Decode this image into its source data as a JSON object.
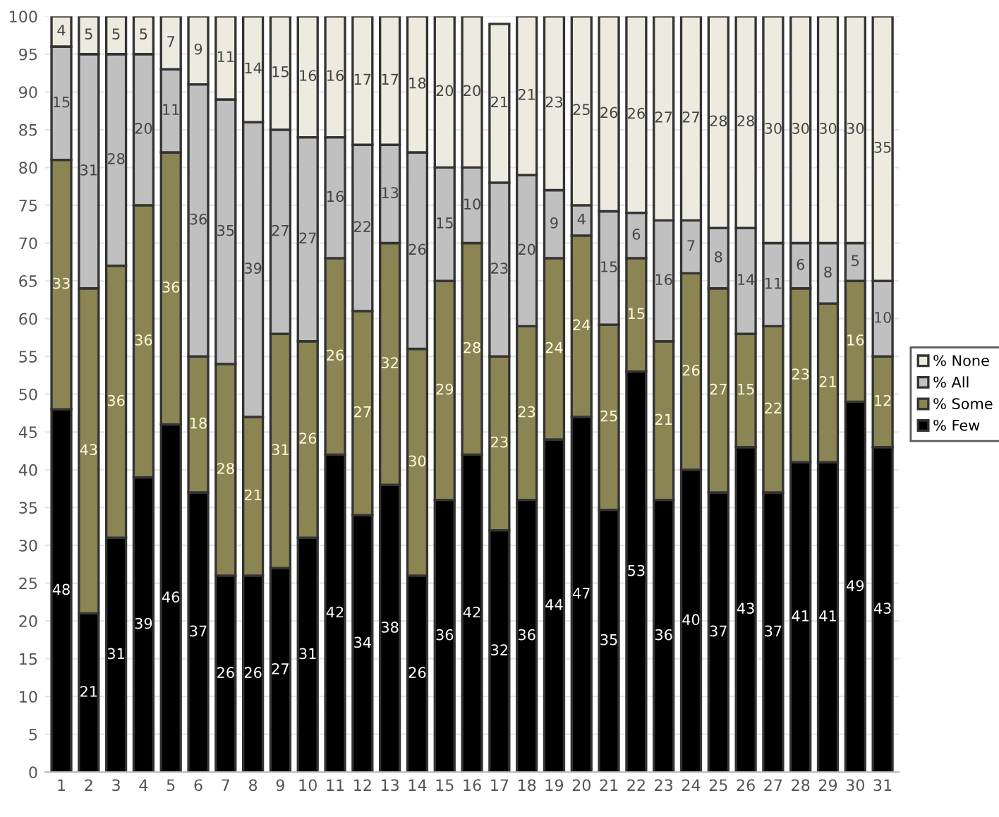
{
  "chart_data": {
    "type": "bar",
    "stacked": true,
    "categories": [
      "1",
      "2",
      "3",
      "4",
      "5",
      "6",
      "7",
      "8",
      "9",
      "10",
      "11",
      "12",
      "13",
      "14",
      "15",
      "16",
      "17",
      "18",
      "19",
      "20",
      "21",
      "22",
      "23",
      "24",
      "25",
      "26",
      "27",
      "28",
      "29",
      "30",
      "31"
    ],
    "series": [
      {
        "name": "% Few",
        "color": "#000000",
        "values": [
          48,
          21,
          31,
          39,
          46,
          37,
          26,
          26,
          27,
          31,
          42,
          34,
          38,
          26,
          36,
          42,
          32,
          36,
          44,
          47,
          34.7,
          53,
          36,
          40,
          37,
          43,
          37,
          41,
          41,
          49,
          43
        ],
        "value_labels": [
          "48",
          "21",
          "31",
          "39",
          "46",
          "37",
          "26",
          "26",
          "27",
          "31",
          "42",
          "34",
          "38",
          "26",
          "36",
          "42",
          "32",
          "36",
          "44",
          "47",
          "35",
          "53",
          "36",
          "40",
          "37",
          "43",
          "37",
          "41",
          "41",
          "49",
          "43"
        ]
      },
      {
        "name": "% Some",
        "color": "#8b8453",
        "values": [
          33,
          43,
          36,
          36,
          36,
          18,
          28,
          21,
          31,
          26,
          26,
          27,
          32,
          30,
          29,
          28,
          23,
          23,
          24,
          24,
          24.5,
          15,
          21,
          26,
          27,
          15,
          22,
          23,
          21,
          16,
          12
        ],
        "value_labels": [
          "33",
          "43",
          "36",
          "36",
          "36",
          "18",
          "28",
          "21",
          "31",
          "26",
          "26",
          "27",
          "32",
          "30",
          "29",
          "28",
          "23",
          "23",
          "24",
          "24",
          "25",
          "15",
          "21",
          "26",
          "27",
          "15",
          "22",
          "23",
          "21",
          "16",
          "12"
        ]
      },
      {
        "name": "% All",
        "color": "#c0c0c0",
        "values": [
          15,
          31,
          28,
          20,
          11,
          36,
          35,
          39,
          27,
          27,
          16,
          22,
          13,
          26,
          15,
          10,
          23,
          20,
          9,
          4,
          15,
          6,
          16,
          7,
          8,
          14,
          11,
          6,
          8,
          5,
          10
        ],
        "value_labels": [
          "15",
          "31",
          "28",
          "20",
          "11",
          "36",
          "35",
          "39",
          "27",
          "27",
          "16",
          "22",
          "13",
          "26",
          "15",
          "10",
          "23",
          "20",
          "9",
          "4",
          "15",
          "6",
          "16",
          "7",
          "8",
          "14",
          "11",
          "6",
          "8",
          "5",
          "10"
        ]
      },
      {
        "name": "% None",
        "color": "#edebdf",
        "values": [
          4,
          5,
          5,
          5,
          7,
          9,
          11,
          14,
          15,
          16,
          16,
          17,
          17,
          18,
          20,
          20,
          21,
          21,
          23,
          25,
          25.8,
          26,
          27,
          27,
          28,
          28,
          30,
          30,
          30,
          30,
          35
        ],
        "value_labels": [
          "4",
          "5",
          "5",
          "5",
          "7",
          "9",
          "11",
          "14",
          "15",
          "16",
          "16",
          "17",
          "17",
          "18",
          "20",
          "20",
          "21",
          "21",
          "23",
          "25",
          "26",
          "26",
          "27",
          "27",
          "28",
          "28",
          "30",
          "30",
          "30",
          "30",
          "35"
        ]
      }
    ],
    "ylim": [
      0,
      100
    ],
    "yticks": [
      0,
      5,
      10,
      15,
      20,
      25,
      30,
      35,
      40,
      45,
      50,
      55,
      60,
      65,
      70,
      75,
      80,
      85,
      90,
      95,
      100
    ],
    "grid": "y",
    "legend": "right"
  }
}
